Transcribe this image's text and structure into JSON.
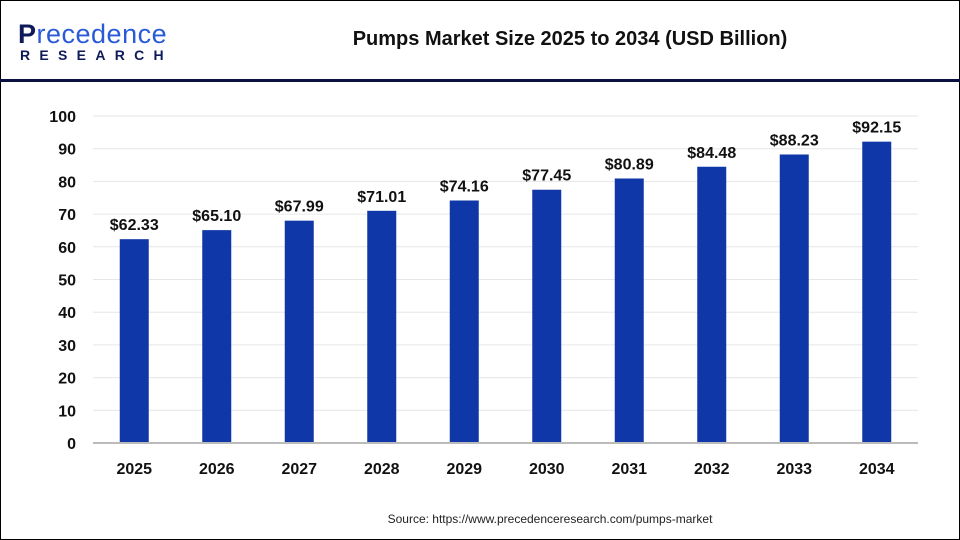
{
  "header": {
    "logo_text": "Precedence RESEARCH",
    "title": "Pumps Market Size 2025 to 2034 (USD Billion)"
  },
  "footer": {
    "source": "Source: https://www.precedenceresearch.com/pumps-market"
  },
  "chart_data": {
    "type": "bar",
    "title": "Pumps Market Size 2025 to 2034 (USD Billion)",
    "categories": [
      "2025",
      "2026",
      "2027",
      "2028",
      "2029",
      "2030",
      "2031",
      "2032",
      "2033",
      "2034"
    ],
    "values": [
      62.33,
      65.1,
      67.99,
      71.01,
      74.16,
      77.45,
      80.89,
      84.48,
      88.23,
      92.15
    ],
    "data_labels": [
      "$62.33",
      "$65.10",
      "$67.99",
      "$71.01",
      "$74.16",
      "$77.45",
      "$80.89",
      "$84.48",
      "$88.23",
      "$92.15"
    ],
    "yticks": [
      "0",
      "10",
      "20",
      "30",
      "40",
      "50",
      "60",
      "70",
      "80",
      "90",
      "100"
    ],
    "ylim": [
      0,
      100
    ],
    "grid": true,
    "bar_color": "#0f37a8",
    "xlabel": "",
    "ylabel": ""
  }
}
